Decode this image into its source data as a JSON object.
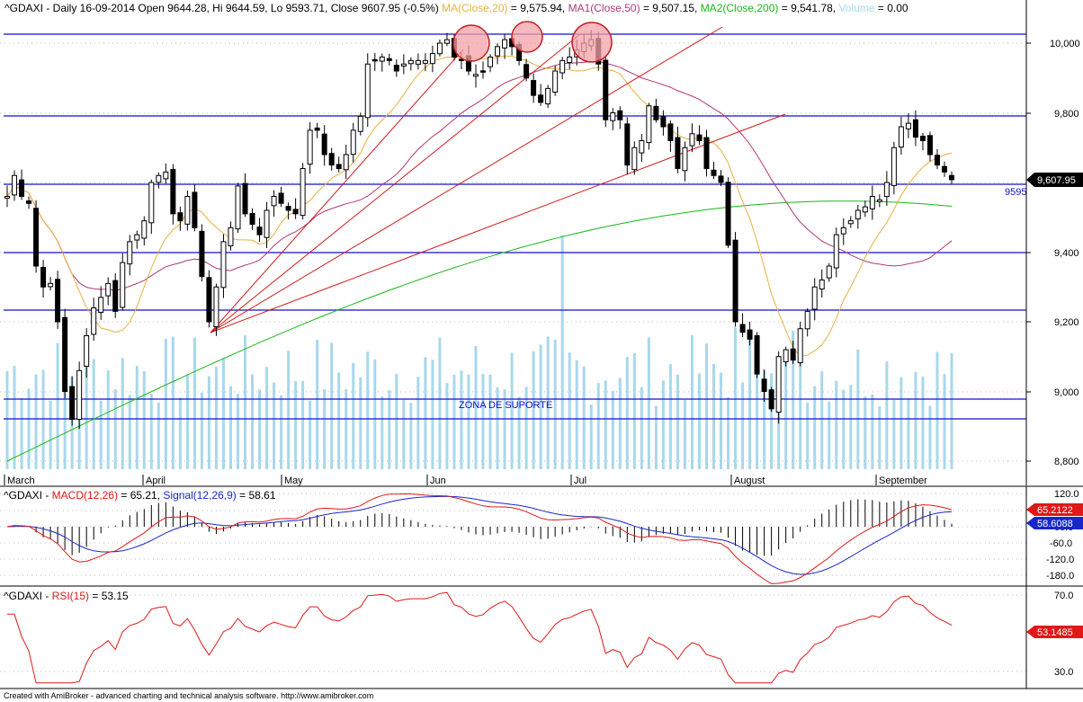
{
  "header": {
    "symbol": "^GDAXI",
    "period": "Daily",
    "date": "16-09-2014",
    "open_label": "Open",
    "open": "9644.28",
    "hi_label": "Hi",
    "hi": "9644.59",
    "lo_label": "Lo",
    "lo": "9593.71",
    "close_label": "Close",
    "close": "9607.95",
    "change": "(-0.5%)",
    "ma20_label": "MA(Close,20)",
    "ma20_value": "9,575.94",
    "ma50_label": "MA1(Close,50)",
    "ma50_value": "9,507.15",
    "ma200_label": "MA2(Close,200)",
    "ma200_value": "9,541.78",
    "volume_label": "Volume",
    "volume_value": "0.00"
  },
  "colors": {
    "ma20": "#e8b040",
    "ma50": "#b03878",
    "ma200": "#18b818",
    "volume": "#a8d8ec",
    "level_line": "#1010c8",
    "trendline": "#d01818",
    "macd": "#e01818",
    "signal": "#1828c8",
    "rsi": "#e01818",
    "circle_fill": "#f4a0a8",
    "circle_stroke": "#c02020"
  },
  "price_panel": {
    "y_ticks": [
      "10,000",
      "9,800",
      "9,600",
      "9,400",
      "9,200",
      "9,000",
      "8,800"
    ],
    "last_price_tag": "9,607.95",
    "level_label": "9595",
    "zone_label": "ZONA DE SUPORTE",
    "months": [
      "March",
      "April",
      "May",
      "Jun",
      "Jul",
      "August",
      "September"
    ]
  },
  "macd_panel": {
    "title_symbol": "^GDAXI",
    "macd_label": "MACD(12,26)",
    "macd_value": "65.21",
    "signal_label": "Signal(12,26,9)",
    "signal_value": "58.61",
    "y_ticks": [
      "120.0",
      "60.0",
      "-60.0",
      "-120.0",
      "-180.0"
    ],
    "macd_tag": "65.2122",
    "signal_tag": "58.6088"
  },
  "rsi_panel": {
    "title_symbol": "^GDAXI",
    "rsi_label": "RSI(15)",
    "rsi_value": "53.15",
    "y_ticks": [
      "70.0",
      "30.0"
    ],
    "rsi_tag": "53.1485"
  },
  "footer": {
    "credit": "Created with AmiBroker - advanced charting and technical analysis software. http://www.amibroker.com"
  },
  "chart_data": {
    "type": "candlestick",
    "symbol": "^GDAXI",
    "period": "Daily",
    "x_range": [
      "2014-03",
      "2014-09-16"
    ],
    "ylim": [
      8800,
      10050
    ],
    "horizontal_levels": [
      10020,
      9795,
      9595,
      9400,
      9235,
      8980,
      8925
    ],
    "overlays": [
      "MA(Close,20)",
      "MA1(Close,50)",
      "MA2(Close,200)"
    ],
    "closes": [
      9560,
      9620,
      9560,
      9540,
      9360,
      9300,
      9310,
      9200,
      9000,
      8920,
      9060,
      9160,
      9240,
      9270,
      9310,
      9230,
      9370,
      9430,
      9450,
      9490,
      9600,
      9620,
      9630,
      9510,
      9490,
      9560,
      9470,
      9330,
      9200,
      9300,
      9430,
      9470,
      9590,
      9510,
      9480,
      9450,
      9520,
      9560,
      9540,
      9520,
      9510,
      9640,
      9750,
      9750,
      9680,
      9650,
      9640,
      9680,
      9750,
      9790,
      9940,
      9950,
      9960,
      9950,
      9920,
      9940,
      9950,
      9950,
      9950,
      9970,
      10000,
      10010,
      9960,
      9950,
      9920,
      9910,
      9920,
      9960,
      9990,
      10010,
      9990,
      9950,
      9900,
      9850,
      9830,
      9870,
      9920,
      9950,
      9960,
      9980,
      10000,
      10010,
      9940,
      9780,
      9800,
      9780,
      9650,
      9700,
      9720,
      9820,
      9780,
      9760,
      9720,
      9640,
      9700,
      9740,
      9720,
      9640,
      9620,
      9600,
      9420,
      9200,
      9170,
      9150,
      9050,
      9000,
      8950,
      9100,
      9120,
      9090,
      9180,
      9230,
      9300,
      9320,
      9360,
      9450,
      9470,
      9490,
      9520,
      9530,
      9560,
      9550,
      9600,
      9700,
      9760,
      9770,
      9730,
      9720,
      9680,
      9650,
      9630,
      9608
    ],
    "macd": {
      "last": 65.2122,
      "signal_last": 58.6088,
      "ylim": [
        -200,
        130
      ]
    },
    "rsi": {
      "last": 53.1485,
      "ylim": [
        20,
        75
      ],
      "levels": [
        70,
        30
      ]
    }
  }
}
